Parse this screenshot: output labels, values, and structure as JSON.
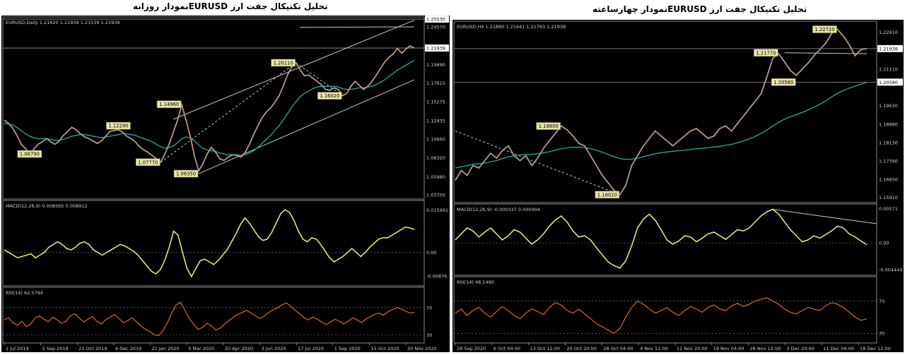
{
  "titles": {
    "left": "تحلیل تکنیکال جفت ارز  EURUSDنمودار روزانه",
    "right": "تحلیل تکنیکال جفت ارز  EURUSDنمودار چهارساعته"
  },
  "chart_data": [
    {
      "type": "line",
      "symbol_header": "EURUSD,Daily  1.21620 1.21939 1.21539 1.21939",
      "price_ticks": [
        "1.25530",
        "1.24570",
        "1.21939",
        "1.19890",
        "1.17615",
        "1.15275",
        "1.12935",
        "1.10660",
        "1.08320",
        "1.05980",
        "1.03705"
      ],
      "price_tick_values": [
        1.2553,
        1.2457,
        1.21939,
        1.1989,
        1.17615,
        1.15275,
        1.12935,
        1.1066,
        1.0832,
        1.0598,
        1.03705
      ],
      "highlight_tick": "1.25530",
      "current_price": "1.21939",
      "ylim": [
        1.032,
        1.258
      ],
      "x_labels": [
        "1 Jul 2019",
        "5 Sep 2019",
        "21 Oct 2019",
        "4 Dec 2019",
        "21 Jan 2020",
        "5 Mar 2020",
        "20 Apr 2020",
        "3 Jun 2020",
        "17 Jul 2020",
        "1 Sep 2020",
        "15 Oct 2020",
        "30 Nov 2020"
      ],
      "price_series": [
        1.13,
        1.126,
        1.12,
        1.111,
        1.1,
        1.095,
        1.087,
        1.094,
        1.1,
        1.103,
        1.107,
        1.103,
        1.1,
        1.104,
        1.111,
        1.116,
        1.121,
        1.118,
        1.113,
        1.109,
        1.107,
        1.104,
        1.101,
        1.104,
        1.11,
        1.116,
        1.117,
        1.118,
        1.115,
        1.11,
        1.107,
        1.103,
        1.097,
        1.093,
        1.09,
        1.086,
        1.082,
        1.0777,
        1.088,
        1.1,
        1.115,
        1.13,
        1.149,
        1.13,
        1.11,
        1.085,
        1.067,
        1.076,
        1.088,
        1.096,
        1.09,
        1.082,
        1.08,
        1.084,
        1.087,
        1.086,
        1.084,
        1.09,
        1.1,
        1.112,
        1.123,
        1.133,
        1.14,
        1.145,
        1.152,
        1.16,
        1.172,
        1.186,
        1.196,
        1.2011,
        1.192,
        1.185,
        1.186,
        1.182,
        1.178,
        1.174,
        1.168,
        1.167,
        1.17,
        1.168,
        1.1602,
        1.163,
        1.172,
        1.178,
        1.173,
        1.168,
        1.172,
        1.178,
        1.186,
        1.194,
        1.202,
        1.208,
        1.212,
        1.219,
        1.213,
        1.218,
        1.222,
        1.21939
      ],
      "ma_series": [
        1.126,
        1.125,
        1.124,
        1.121,
        1.117,
        1.113,
        1.11,
        1.108,
        1.107,
        1.107,
        1.107,
        1.106,
        1.105,
        1.105,
        1.106,
        1.108,
        1.11,
        1.111,
        1.112,
        1.112,
        1.111,
        1.11,
        1.109,
        1.108,
        1.109,
        1.11,
        1.111,
        1.112,
        1.113,
        1.113,
        1.112,
        1.111,
        1.109,
        1.107,
        1.105,
        1.103,
        1.1,
        1.097,
        1.095,
        1.096,
        1.098,
        1.102,
        1.107,
        1.109,
        1.108,
        1.104,
        1.099,
        1.095,
        1.093,
        1.092,
        1.091,
        1.089,
        1.088,
        1.087,
        1.087,
        1.087,
        1.086,
        1.087,
        1.089,
        1.092,
        1.096,
        1.101,
        1.106,
        1.111,
        1.117,
        1.123,
        1.13,
        1.138,
        1.146,
        1.153,
        1.159,
        1.163,
        1.166,
        1.169,
        1.171,
        1.172,
        1.172,
        1.172,
        1.172,
        1.171,
        1.169,
        1.168,
        1.168,
        1.169,
        1.17,
        1.17,
        1.171,
        1.172,
        1.174,
        1.177,
        1.18,
        1.184,
        1.188,
        1.192,
        1.195,
        1.198,
        1.201,
        1.204
      ],
      "price_labels": [
        {
          "text": "1.08790",
          "index": 9,
          "value": 1.0879,
          "side": "left"
        },
        {
          "text": "1.12290",
          "index": 30,
          "value": 1.1229,
          "side": "left"
        },
        {
          "text": "1.07770",
          "index": 37,
          "value": 1.0777,
          "side": "left"
        },
        {
          "text": "1.14960",
          "index": 42,
          "value": 1.1496,
          "side": "left"
        },
        {
          "text": "1.06350",
          "index": 46,
          "value": 1.0635,
          "side": "left"
        },
        {
          "text": "1.20110",
          "index": 69,
          "value": 1.2011,
          "side": "left"
        },
        {
          "text": "1.16020",
          "index": 80,
          "value": 1.1602,
          "side": "left"
        }
      ],
      "panels": {
        "macd": {
          "label": "MACD(12,26,9) 0.008565 0.008912",
          "ticks": [
            "0.015991",
            "0.00",
            "-0.00876"
          ],
          "tick_values": [
            0.015991,
            0.0,
            -0.00876
          ],
          "ylim": [
            -0.0125,
            0.0195
          ],
          "series": [
            0.001,
            0.0,
            -0.001,
            -0.002,
            -0.0015,
            -0.001,
            -0.0005,
            -0.002,
            -0.001,
            0.0,
            0.002,
            0.003,
            0.004,
            0.003,
            0.0015,
            0.001,
            0.002,
            0.0035,
            0.004,
            0.003,
            0.001,
            0.0,
            -0.001,
            0.0,
            0.001,
            0.002,
            0.003,
            0.0025,
            0.0015,
            0.0005,
            -0.001,
            -0.003,
            -0.005,
            -0.007,
            -0.008,
            -0.0065,
            -0.003,
            0.002,
            0.008,
            0.0065,
            0.0,
            -0.006,
            -0.009,
            -0.006,
            -0.003,
            -0.0025,
            -0.0035,
            -0.0045,
            -0.003,
            -0.001,
            0.001,
            0.004,
            0.007,
            0.0105,
            0.013,
            0.011,
            0.0085,
            0.006,
            0.0045,
            0.005,
            0.0075,
            0.011,
            0.0145,
            0.016,
            0.015,
            0.012,
            0.008,
            0.005,
            0.004,
            0.0055,
            0.005,
            0.003,
            0.0005,
            -0.002,
            -0.0035,
            -0.0025,
            -0.0015,
            0.0,
            0.0015,
            0.0,
            -0.0015,
            0.0,
            0.002,
            0.0035,
            0.005,
            0.0055,
            0.0055,
            0.0065,
            0.0075,
            0.0085,
            0.0095,
            0.0092,
            0.0086
          ]
        },
        "rsi": {
          "label": "RSI(14) 62.5794",
          "ticks": [
            "70",
            "30"
          ],
          "tick_values": [
            70,
            30
          ],
          "ylim": [
            18,
            100
          ],
          "series": [
            52,
            55,
            48,
            44,
            50,
            42,
            46,
            55,
            58,
            53,
            49,
            56,
            52,
            47,
            50,
            58,
            61,
            55,
            49,
            53,
            57,
            50,
            46,
            52,
            56,
            60,
            54,
            48,
            51,
            55,
            49,
            43,
            38,
            35,
            30,
            29,
            36,
            48,
            62,
            74,
            78,
            66,
            54,
            45,
            38,
            41,
            47,
            43,
            37,
            40,
            46,
            51,
            56,
            60,
            63,
            66,
            62,
            58,
            54,
            58,
            63,
            67,
            70,
            74,
            77,
            72,
            66,
            61,
            55,
            52,
            56,
            53,
            49,
            45,
            49,
            53,
            50,
            46,
            50,
            55,
            52,
            48,
            53,
            57,
            60,
            62,
            59,
            64,
            67,
            70,
            68,
            65,
            62,
            63
          ]
        }
      }
    },
    {
      "type": "line",
      "symbol_header": "EURUSD,H4  1.21890 1.21941 1.21793 1.21938",
      "price_ticks": [
        "1.22610",
        "1.21938",
        "1.21110",
        "1.20580",
        "1.19630",
        "1.18880",
        "1.18130",
        "1.17390",
        "1.16650",
        "1.15910"
      ],
      "price_tick_values": [
        1.2261,
        1.21938,
        1.2111,
        1.2058,
        1.1963,
        1.1888,
        1.1813,
        1.1739,
        1.1665,
        1.1591
      ],
      "highlight_tick": "1.20580",
      "current_price": "1.21938",
      "ylim": [
        1.157,
        1.2305
      ],
      "x_labels": [
        "28 Sep 2020",
        "6 Oct 04:00",
        "13 Oct 12:00",
        "20 Oct 20:00",
        "28 Oct 04:00",
        "4 Nov 12:00",
        "11 Nov 20:00",
        "19 Nov 04:00",
        "26 Nov 12:00",
        "3 Dec 20:00",
        "11 Dec 04:00",
        "18 Dec 12:00"
      ],
      "price_series": [
        1.166,
        1.17,
        1.168,
        1.172,
        1.171,
        1.174,
        1.177,
        1.175,
        1.178,
        1.18,
        1.176,
        1.174,
        1.176,
        1.172,
        1.175,
        1.179,
        1.182,
        1.185,
        1.188,
        1.1865,
        1.184,
        1.181,
        1.18,
        1.176,
        1.172,
        1.168,
        1.165,
        1.162,
        1.1602,
        1.164,
        1.172,
        1.176,
        1.18,
        1.183,
        1.186,
        1.184,
        1.182,
        1.18,
        1.182,
        1.184,
        1.186,
        1.187,
        1.185,
        1.183,
        1.184,
        1.187,
        1.188,
        1.186,
        1.189,
        1.192,
        1.195,
        1.198,
        1.201,
        1.208,
        1.2155,
        1.2173,
        1.214,
        1.2105,
        1.2085,
        1.211,
        1.2135,
        1.2165,
        1.219,
        1.2215,
        1.2255,
        1.2272,
        1.2245,
        1.221,
        1.2165,
        1.219,
        1.2194
      ],
      "ma_series": [
        1.171,
        1.1715,
        1.172,
        1.1725,
        1.1728,
        1.173,
        1.1735,
        1.174,
        1.1748,
        1.1755,
        1.176,
        1.1762,
        1.1765,
        1.1766,
        1.1768,
        1.1772,
        1.1776,
        1.1782,
        1.1788,
        1.1792,
        1.1794,
        1.1794,
        1.1793,
        1.1788,
        1.1782,
        1.1774,
        1.1765,
        1.1756,
        1.1748,
        1.1745,
        1.1746,
        1.175,
        1.1756,
        1.1762,
        1.1768,
        1.1772,
        1.1775,
        1.1778,
        1.178,
        1.1782,
        1.1785,
        1.1788,
        1.179,
        1.1792,
        1.1795,
        1.1798,
        1.1802,
        1.1806,
        1.1812,
        1.182,
        1.1828,
        1.1838,
        1.185,
        1.1864,
        1.188,
        1.1895,
        1.1908,
        1.1918,
        1.1926,
        1.1935,
        1.1945,
        1.1956,
        1.1968,
        1.1982,
        1.1998,
        1.2012,
        1.2024,
        1.2034,
        1.2042,
        1.205,
        1.2058
      ],
      "price_labels": [
        {
          "text": "1.18800",
          "index": 18,
          "value": 1.188,
          "side": "left"
        },
        {
          "text": "1.16020",
          "index": 28,
          "value": 1.1602,
          "side": "left"
        },
        {
          "text": "1.21770",
          "index": 55,
          "value": 1.2177,
          "side": "left"
        },
        {
          "text": "1.20580",
          "index": 58,
          "value": 1.2058,
          "side": "left"
        },
        {
          "text": "1.22720",
          "index": 65,
          "value": 1.2272,
          "side": "left"
        }
      ],
      "panels": {
        "macd": {
          "label": "MACD(12,26,9) -0.000337 0.000404",
          "ticks": [
            "0.00571",
            "0.00",
            "-0.004444"
          ],
          "tick_values": [
            0.00571,
            0.0,
            -0.004444
          ],
          "ylim": [
            -0.0054,
            0.0065
          ],
          "series": [
            0.0005,
            0.0015,
            0.0025,
            0.002,
            0.001,
            0.0018,
            0.0025,
            0.0015,
            0.0005,
            0.0012,
            0.0022,
            0.0018,
            0.0008,
            -0.0002,
            0.0005,
            0.0015,
            0.0028,
            0.0038,
            0.0045,
            0.0035,
            0.002,
            0.001,
            0.0012,
            0.0005,
            -0.0008,
            -0.002,
            -0.0032,
            -0.0038,
            -0.0042,
            -0.003,
            -0.0005,
            0.0025,
            0.004,
            0.0048,
            0.0038,
            0.0022,
            0.0005,
            -0.0002,
            0.0003,
            0.0012,
            0.001,
            0.0002,
            0.0008,
            0.0015,
            0.0018,
            0.0012,
            0.0006,
            0.0014,
            0.0022,
            0.002,
            0.0025,
            0.0035,
            0.0045,
            0.0052,
            0.0056,
            0.0048,
            0.0035,
            0.0022,
            0.0012,
            0.0002,
            0.0005,
            0.0012,
            0.0008,
            0.0014,
            0.002,
            0.0028,
            0.0025,
            0.0015,
            0.001,
            0.0003,
            -0.0003
          ]
        },
        "rsi": {
          "label": "RSI(14) 48.1490",
          "ticks": [
            "70",
            "30"
          ],
          "tick_values": [
            70,
            30
          ],
          "ylim": [
            18,
            100
          ],
          "series": [
            55,
            60,
            52,
            58,
            62,
            55,
            50,
            57,
            63,
            58,
            52,
            48,
            55,
            60,
            57,
            53,
            62,
            68,
            65,
            58,
            55,
            60,
            54,
            48,
            42,
            38,
            34,
            30,
            36,
            50,
            62,
            70,
            66,
            60,
            55,
            58,
            62,
            56,
            52,
            58,
            63,
            60,
            56,
            62,
            65,
            60,
            58,
            64,
            67,
            63,
            66,
            70,
            72,
            74,
            70,
            66,
            60,
            56,
            54,
            58,
            62,
            60,
            58,
            64,
            68,
            66,
            62,
            56,
            50,
            46,
            48
          ]
        }
      }
    }
  ]
}
